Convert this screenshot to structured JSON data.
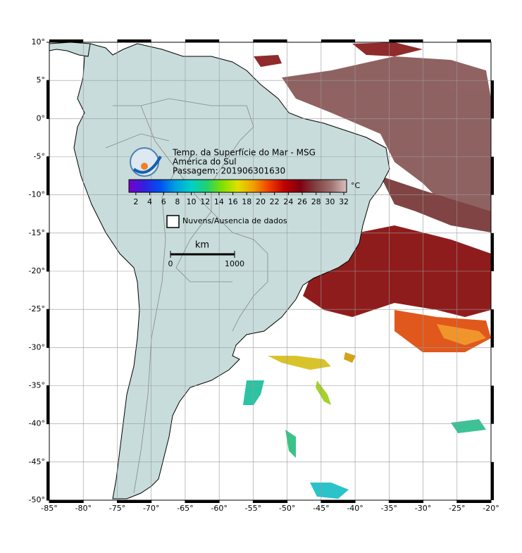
{
  "map": {
    "title_lines": [
      "Temp. da Superfície do Mar - MSG",
      "América do Sul",
      "Passagem: 201906301630"
    ],
    "lonlim": [
      -85,
      -20
    ],
    "latlim": [
      10,
      -50
    ],
    "grid": true,
    "lon_ticks": [
      {
        "value": -85,
        "label": "-85°"
      },
      {
        "value": -80,
        "label": "-80°"
      },
      {
        "value": -75,
        "label": "-75°"
      },
      {
        "value": -70,
        "label": "-70°"
      },
      {
        "value": -65,
        "label": "-65°"
      },
      {
        "value": -60,
        "label": "-60°"
      },
      {
        "value": -55,
        "label": "-55°"
      },
      {
        "value": -50,
        "label": "-50°"
      },
      {
        "value": -45,
        "label": "-45°"
      },
      {
        "value": -40,
        "label": "-40°"
      },
      {
        "value": -35,
        "label": "-35°"
      },
      {
        "value": -30,
        "label": "-30°"
      },
      {
        "value": -25,
        "label": "-25°"
      },
      {
        "value": -20,
        "label": "-20°"
      }
    ],
    "lat_ticks": [
      {
        "value": 10,
        "label": "10°"
      },
      {
        "value": 5,
        "label": "5°"
      },
      {
        "value": 0,
        "label": "0°"
      },
      {
        "value": -5,
        "label": "-5°"
      },
      {
        "value": -10,
        "label": "-10°"
      },
      {
        "value": -15,
        "label": "-15°"
      },
      {
        "value": -20,
        "label": "-20°"
      },
      {
        "value": -25,
        "label": "-25°"
      },
      {
        "value": -30,
        "label": "-30°"
      },
      {
        "value": -35,
        "label": "-35°"
      },
      {
        "value": -40,
        "label": "-40°"
      },
      {
        "value": -45,
        "label": "-45°"
      },
      {
        "value": -50,
        "label": "-50°"
      }
    ]
  },
  "colorbar": {
    "unit": "°C",
    "range": [
      1,
      32.4
    ],
    "ticks": [
      2,
      4,
      6,
      8,
      10,
      12,
      14,
      16,
      18,
      20,
      22,
      24,
      26,
      28,
      30,
      32
    ],
    "colors": [
      "#7a00c8",
      "#3020e0",
      "#0050f0",
      "#00a0e0",
      "#00d0c8",
      "#20d070",
      "#80e000",
      "#e0e000",
      "#f0a000",
      "#f04000",
      "#c00000",
      "#800010",
      "#804040",
      "#a07070",
      "#d8c0c0"
    ]
  },
  "legend": {
    "label": "Nuvens/Ausencia de dados"
  },
  "scale_bar": {
    "unit": "km",
    "ticks": [
      0,
      1000
    ]
  }
}
